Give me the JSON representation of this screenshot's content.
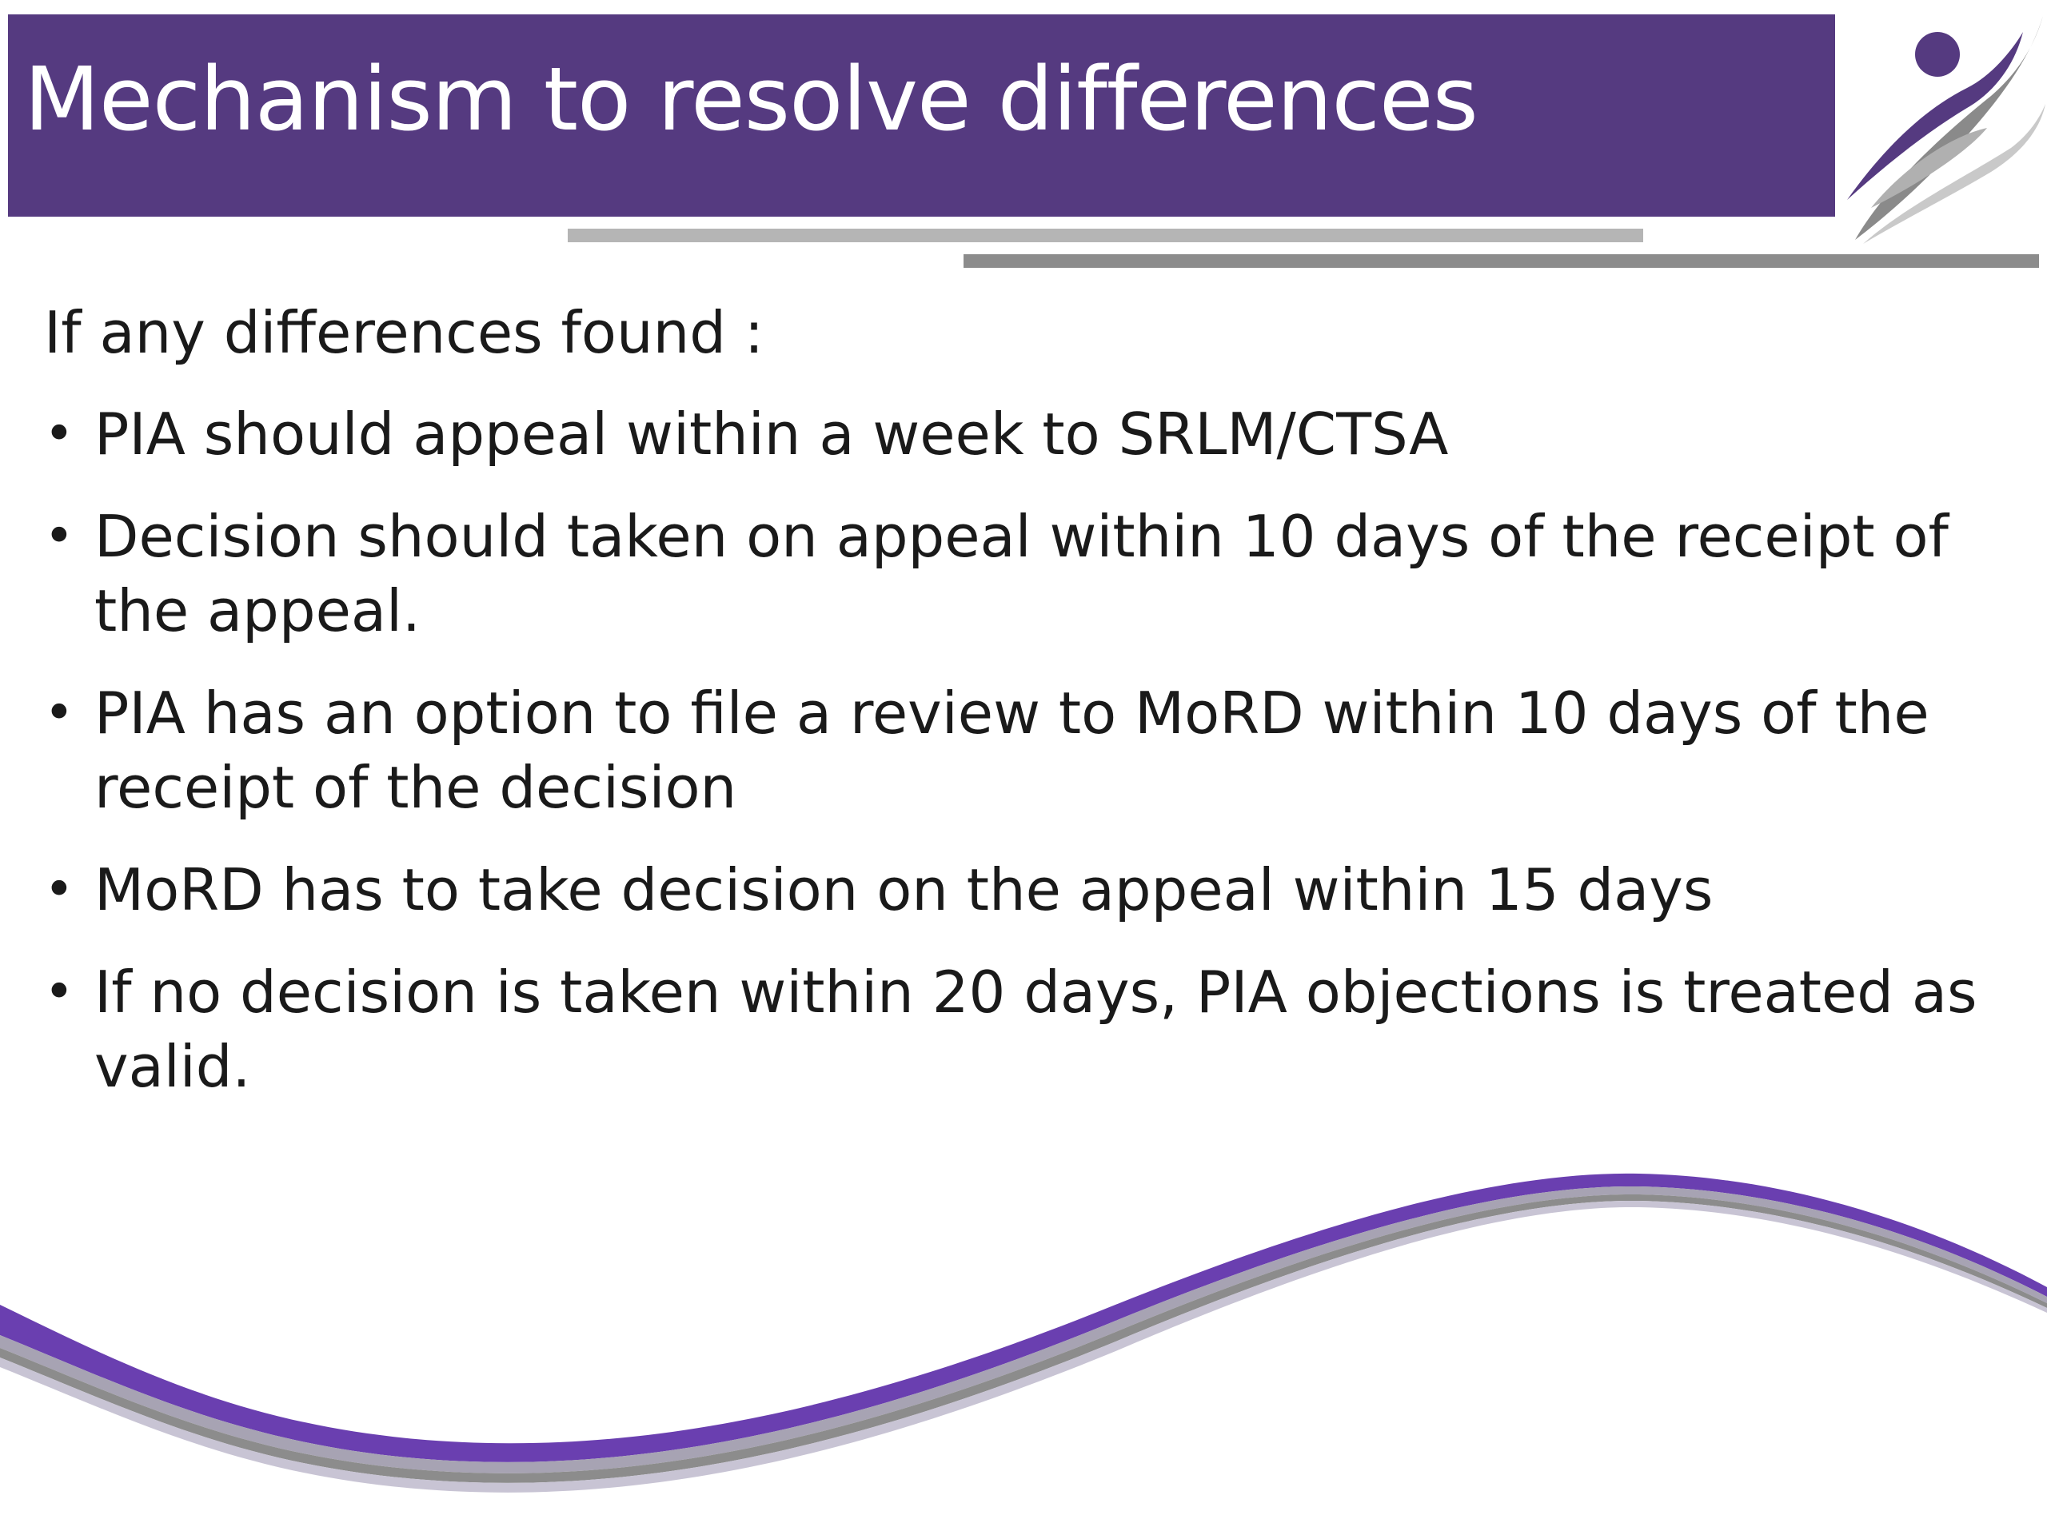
{
  "slide": {
    "title": "Mechanism to resolve differences",
    "intro": "If any differences found :",
    "bullets": [
      {
        "text": "PIA should appeal within a week to SRLM/CTSA"
      },
      {
        "text": "Decision should taken on appeal within 10 days of the receipt of the appeal."
      },
      {
        "text": "PIA has an option to file  a review to MoRD within 10 days of the receipt of the decision"
      },
      {
        "text": "MoRD has to take decision on the appeal within 15 days"
      },
      {
        "text": "If no decision is taken within 20 days, PIA objections is treated as valid."
      }
    ],
    "bullet_glyph": "•"
  },
  "icons": {
    "logo": "person-swoosh-logo-icon",
    "wave": "decorative-wave-icon"
  },
  "colors": {
    "banner": "#553a80",
    "wave_primary": "#6a3fb0",
    "bar_light": "#b5b5b5",
    "bar_dark": "#8c8c8c",
    "text": "#1a1a1a"
  }
}
